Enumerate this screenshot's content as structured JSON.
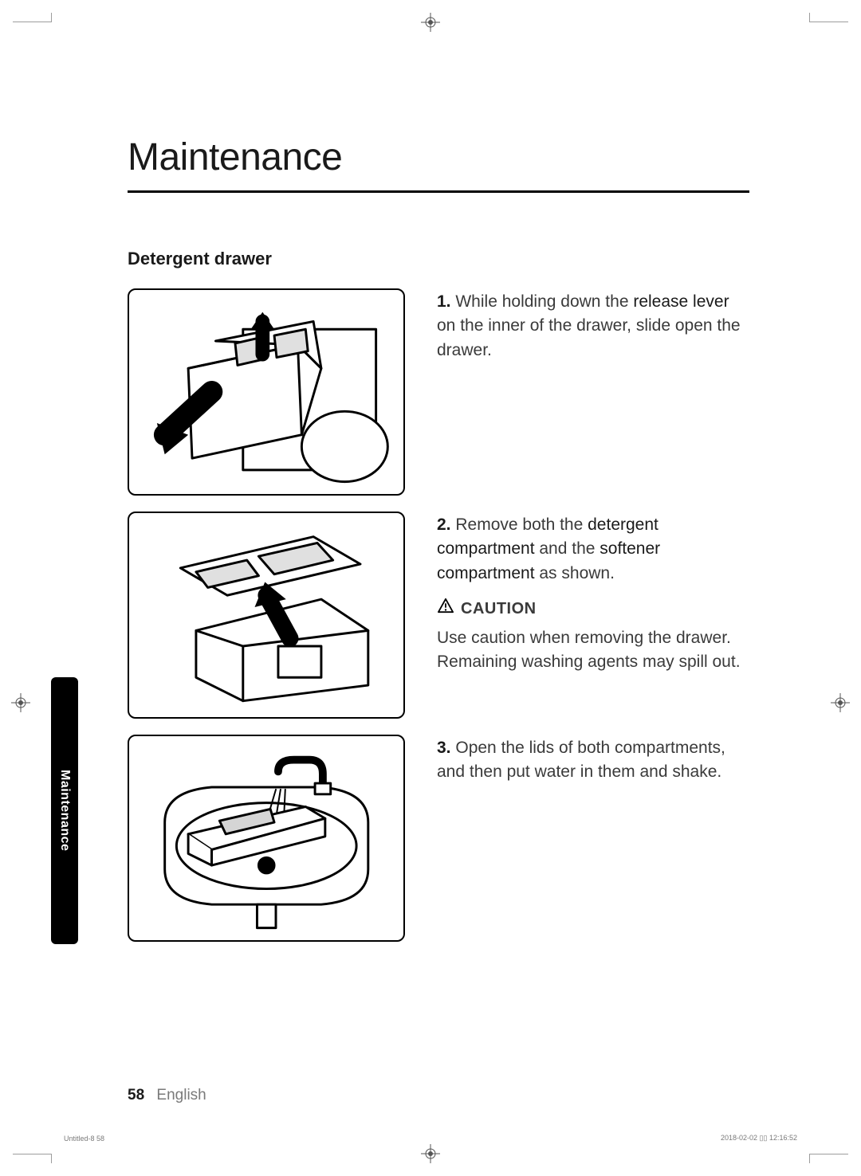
{
  "title": "Maintenance",
  "subtitle": "Detergent drawer",
  "sideTab": "Maintenance",
  "steps": [
    {
      "num": "1.",
      "parts": [
        {
          "t": "While holding down the ",
          "b": false
        },
        {
          "t": "release lever",
          "b": true
        },
        {
          "t": " on the inner of the drawer, slide open the drawer.",
          "b": false
        }
      ]
    },
    {
      "num": "2.",
      "parts": [
        {
          "t": "Remove both the ",
          "b": false
        },
        {
          "t": "detergent compartment",
          "b": true
        },
        {
          "t": " and the ",
          "b": false
        },
        {
          "t": "softener compartment",
          "b": true
        },
        {
          "t": " as shown.",
          "b": false
        }
      ],
      "cautionLabel": "CAUTION",
      "cautionBody": "Use caution when removing the drawer. Remaining washing agents may spill out."
    },
    {
      "num": "3.",
      "parts": [
        {
          "t": "Open the lids of both compartments, and then put water in them and shake.",
          "b": false
        }
      ]
    }
  ],
  "footer": {
    "page": "58",
    "lang": "English"
  },
  "microLeft": "Untitled-8   58",
  "microRight": "2018-02-02   ▯▯ 12:16:52"
}
